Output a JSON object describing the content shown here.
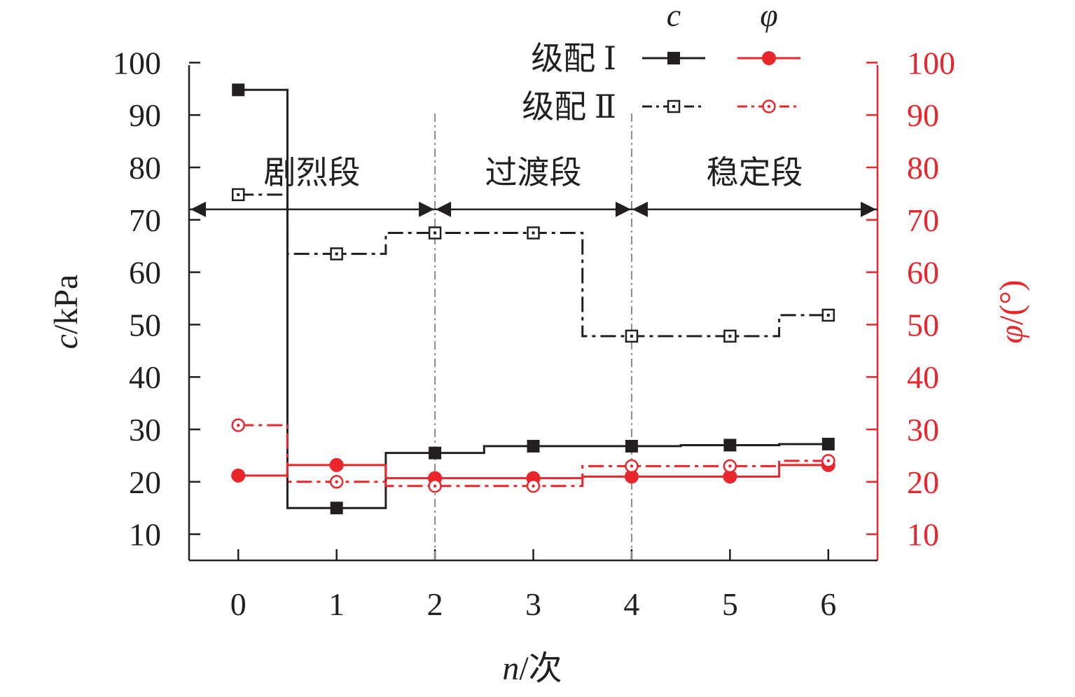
{
  "chart_data": {
    "type": "line",
    "step": true,
    "x": [
      0,
      1,
      2,
      3,
      4,
      5,
      6
    ],
    "xlabel": {
      "var": "n",
      "unit": "/次"
    },
    "ylabel_left": {
      "var": "c",
      "unit": "/kPa"
    },
    "ylabel_right": {
      "var": "φ",
      "unit": "/(°)"
    },
    "xlim": [
      -0.5,
      6.5
    ],
    "ylim_left": [
      5,
      100
    ],
    "ylim_right": [
      5,
      100
    ],
    "yticks": [
      10,
      20,
      30,
      40,
      50,
      60,
      70,
      80,
      90,
      100
    ],
    "grid": false,
    "colors": {
      "c": "#231f20",
      "phi": "#e8262b",
      "divider": "#8c8c8c"
    },
    "legend": {
      "placement": "top-right",
      "col_headers": [
        "c",
        "φ"
      ],
      "row_labels": [
        "级配 Ⅰ",
        "级配 Ⅱ"
      ]
    },
    "series": [
      {
        "group": "c",
        "row": 0,
        "values": [
          94.8,
          15.0,
          25.5,
          26.8,
          26.8,
          27.0,
          27.2
        ]
      },
      {
        "group": "phi",
        "row": 0,
        "values": [
          21.2,
          23.2,
          20.7,
          20.7,
          21.0,
          21.0,
          23.2
        ]
      },
      {
        "group": "c",
        "row": 1,
        "values": [
          74.8,
          63.5,
          67.5,
          67.5,
          47.8,
          47.8,
          51.8
        ]
      },
      {
        "group": "phi",
        "row": 1,
        "values": [
          30.8,
          20.0,
          19.2,
          19.2,
          23.0,
          23.0,
          24.0
        ]
      }
    ],
    "stage_dividers": [
      2,
      4
    ],
    "stage_arrow_y": 72,
    "stages": [
      {
        "label": "剧烈段",
        "from": -0.5,
        "to": 2
      },
      {
        "label": "过渡段",
        "from": 2,
        "to": 4
      },
      {
        "label": "稳定段",
        "from": 4,
        "to": 6.5
      }
    ]
  }
}
